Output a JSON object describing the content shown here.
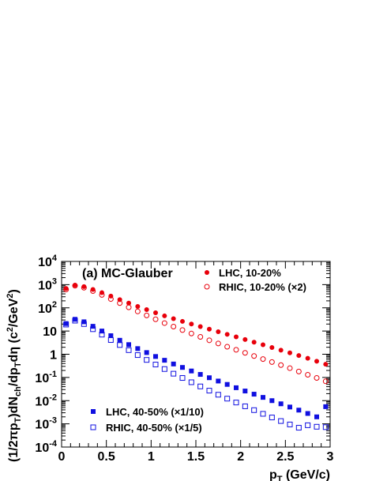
{
  "chart_data": {
    "type": "scatter",
    "annotation": "(a) MC-Glauber",
    "xlabel": "p",
    "xlabel_sub": "T",
    "xlabel_unit": " (GeV/c)",
    "ylabel_parts": {
      "p1": "(1/2πp",
      "s1": "T",
      "p2": ")dN",
      "s2": "ch",
      "p3": "/dp",
      "s3": "T",
      "p4": "dη (c",
      "sup1": "2",
      "p5": "/GeV",
      "sup2": "2",
      "p6": ")"
    },
    "xlim": [
      0,
      3
    ],
    "ylim_log10": [
      -4,
      4
    ],
    "yscale": "log",
    "xticks": [
      "0",
      "0.5",
      "1",
      "1.5",
      "2",
      "2.5",
      "3"
    ],
    "yticks": [
      {
        "base": "10",
        "exp": "-4"
      },
      {
        "base": "10",
        "exp": "-3"
      },
      {
        "base": "10",
        "exp": "-2"
      },
      {
        "base": "10",
        "exp": "-1"
      },
      {
        "base": "1",
        "exp": ""
      },
      {
        "base": "10",
        "exp": ""
      },
      {
        "base": "10",
        "exp": "2"
      },
      {
        "base": "10",
        "exp": "3"
      },
      {
        "base": "10",
        "exp": "4"
      }
    ],
    "x": [
      0.05,
      0.15,
      0.25,
      0.35,
      0.45,
      0.55,
      0.65,
      0.75,
      0.85,
      0.95,
      1.05,
      1.15,
      1.25,
      1.35,
      1.45,
      1.55,
      1.65,
      1.75,
      1.85,
      1.95,
      2.05,
      2.15,
      2.25,
      2.35,
      2.45,
      2.55,
      2.65,
      2.75,
      2.85,
      2.95
    ],
    "series": [
      {
        "name": "LHC, 10-20%",
        "marker": "filled-circle",
        "color": "#e8000b",
        "values": [
          680,
          950,
          820,
          620,
          450,
          320,
          225,
          160,
          115,
          84,
          61,
          45,
          34,
          26,
          20,
          15.5,
          12,
          9.3,
          7.2,
          5.6,
          4.3,
          3.3,
          2.55,
          1.95,
          1.5,
          1.15,
          0.88,
          0.67,
          0.5,
          0.37
        ]
      },
      {
        "name": "RHIC, 10-20% (×2)",
        "marker": "open-circle",
        "color": "#e8000b",
        "values": [
          620,
          900,
          740,
          530,
          360,
          240,
          160,
          105,
          70,
          47,
          32,
          22,
          15.5,
          11,
          7.8,
          5.6,
          4.0,
          2.9,
          2.1,
          1.55,
          1.15,
          0.84,
          0.62,
          0.46,
          0.34,
          0.25,
          0.18,
          0.13,
          0.095,
          0.068
        ]
      },
      {
        "name": "LHC, 40-50% (×1/10)",
        "marker": "filled-square",
        "color": "#1010e0",
        "values": [
          21,
          32,
          25,
          16,
          10,
          6.3,
          4.0,
          2.6,
          1.75,
          1.18,
          0.8,
          0.55,
          0.38,
          0.27,
          0.19,
          0.135,
          0.097,
          0.07,
          0.05,
          0.036,
          0.026,
          0.019,
          0.0138,
          0.01,
          0.0073,
          0.0053,
          0.0039,
          0.0028,
          0.002,
          0.0055
        ]
      },
      {
        "name": "RHIC, 40-50% (×1/5)",
        "marker": "open-square",
        "color": "#1010e0",
        "values": [
          19,
          28,
          20,
          12,
          7.0,
          4.1,
          2.5,
          1.5,
          0.92,
          0.57,
          0.36,
          0.23,
          0.145,
          0.095,
          0.062,
          0.041,
          0.027,
          0.018,
          0.0122,
          0.0083,
          0.0057,
          0.0039,
          0.0027,
          0.00188,
          0.00132,
          0.00094,
          0.00068,
          0.00087,
          0.00075,
          0.00072
        ]
      }
    ],
    "legend_placement": "top-right and bottom-left",
    "grid": false
  }
}
